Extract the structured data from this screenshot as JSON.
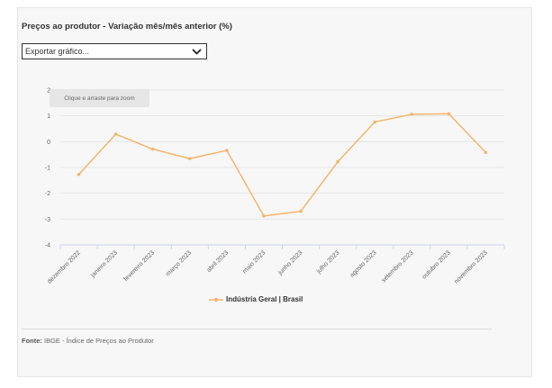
{
  "title": "Preços ao produtor - Variação mês/mês anterior (%)",
  "export_select": {
    "value": "Exportar gráfico..."
  },
  "zoom_button": "Clique e arraste para zoom",
  "source": {
    "label": "Fonte:",
    "text": "IBGE - Índice de Preços ao Produtor"
  },
  "colors": {
    "series": "#f5b56a",
    "grid": "#e6e6e6",
    "axis": "#ccd6eb"
  },
  "chart_data": {
    "type": "line",
    "title": "Preços ao produtor - Variação mês/mês anterior (%)",
    "categories": [
      "dezembro 2022",
      "janeiro 2023",
      "fevereiro 2023",
      "março 2023",
      "abril 2023",
      "maio 2023",
      "junho 2023",
      "julho 2023",
      "agosto 2023",
      "setembro 2023",
      "outubro 2023",
      "novembro 2023"
    ],
    "series": [
      {
        "name": "Indústria Geral | Brasil",
        "values": [
          -1.27,
          0.29,
          -0.29,
          -0.66,
          -0.34,
          -2.88,
          -2.7,
          -0.78,
          0.76,
          1.06,
          1.08,
          -0.42
        ]
      }
    ],
    "ylim": [
      -4,
      2
    ],
    "yticks": [
      "2",
      "1",
      "0",
      "-1",
      "-2",
      "-3",
      "-4"
    ],
    "grid": true,
    "legend_position": "bottom-center",
    "xlabel": "",
    "ylabel": ""
  }
}
